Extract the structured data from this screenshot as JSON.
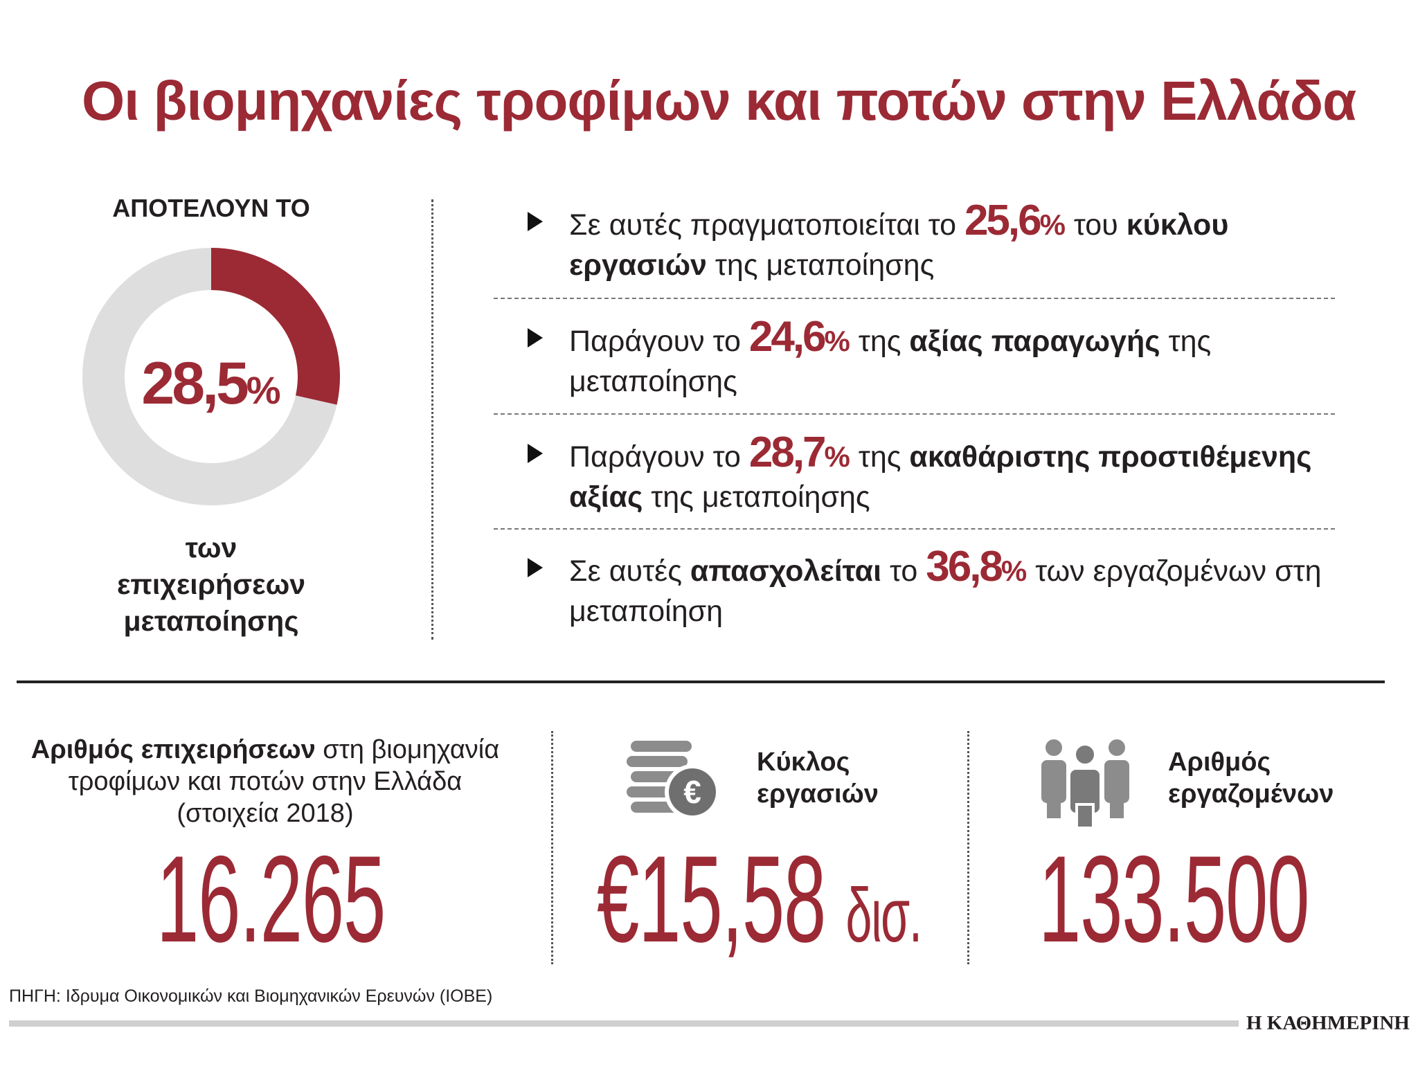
{
  "title": "Οι βιομηχανίες τροφίμων και ποτών στην Ελλάδα",
  "donut": {
    "type": "donut",
    "heading": "ΑΠΟΤΕΛΟΥΝ ΤΟ",
    "value": 28.5,
    "value_label": "28,5",
    "unit": "%",
    "caption": [
      "των",
      "επιχειρήσεων",
      "μεταποίησης"
    ],
    "color": "#9b2a35",
    "rest_color": "#dedede"
  },
  "bullets": [
    {
      "parts": [
        {
          "text": "Σε αυτές πραγματοποιείται το"
        },
        {
          "value": 25.6,
          "label": "25,6",
          "unit": "%"
        },
        {
          "text": "του"
        },
        {
          "text": "κύκλου εργασιών",
          "bold": true
        },
        {
          "text": "της μεταποίησης"
        }
      ]
    },
    {
      "parts": [
        {
          "text": "Παράγουν το"
        },
        {
          "value": 24.6,
          "label": "24,6",
          "unit": "%"
        },
        {
          "text": "της"
        },
        {
          "text": "αξίας παραγωγής",
          "bold": true
        },
        {
          "text": "της μεταποίησης"
        }
      ]
    },
    {
      "parts": [
        {
          "text": "Παράγουν το"
        },
        {
          "value": 28.7,
          "label": "28,7",
          "unit": "%"
        },
        {
          "text": "της"
        },
        {
          "text": "ακαθάριστης προστιθέμενης αξίας",
          "bold": true
        },
        {
          "text": "της μεταποίησης"
        }
      ]
    },
    {
      "parts": [
        {
          "text": "Σε αυτές"
        },
        {
          "text": "απασχολείται",
          "bold": true
        },
        {
          "text": "το"
        },
        {
          "value": 36.8,
          "label": "36,8",
          "unit": "%"
        },
        {
          "text": "των εργαζομένων στη μεταποίηση"
        }
      ]
    }
  ],
  "stats": [
    {
      "label_bold": "Αριθμός επιχειρήσεων",
      "label": "στη βιομηχανία τροφίμων και ποτών στην Ελλάδα",
      "note": "(στοιχεία 2018)",
      "value": 16265,
      "value_label": "16.265"
    },
    {
      "label_bold": "Κύκλος εργασιών",
      "currency": "€",
      "value": 15.58,
      "value_label": "15,58",
      "unit": "δισ."
    },
    {
      "label_bold": "Αριθμός εργαζομένων",
      "value": 133500,
      "value_label": "133.500"
    }
  ],
  "source": "ΠΗΓΗ: Ιδρυμα Οικονομικών και Βιομηχανικών Ερευνών (ΙΟΒΕ)",
  "brand": "Η ΚΑΘΗΜΕΡΙΝΗ"
}
